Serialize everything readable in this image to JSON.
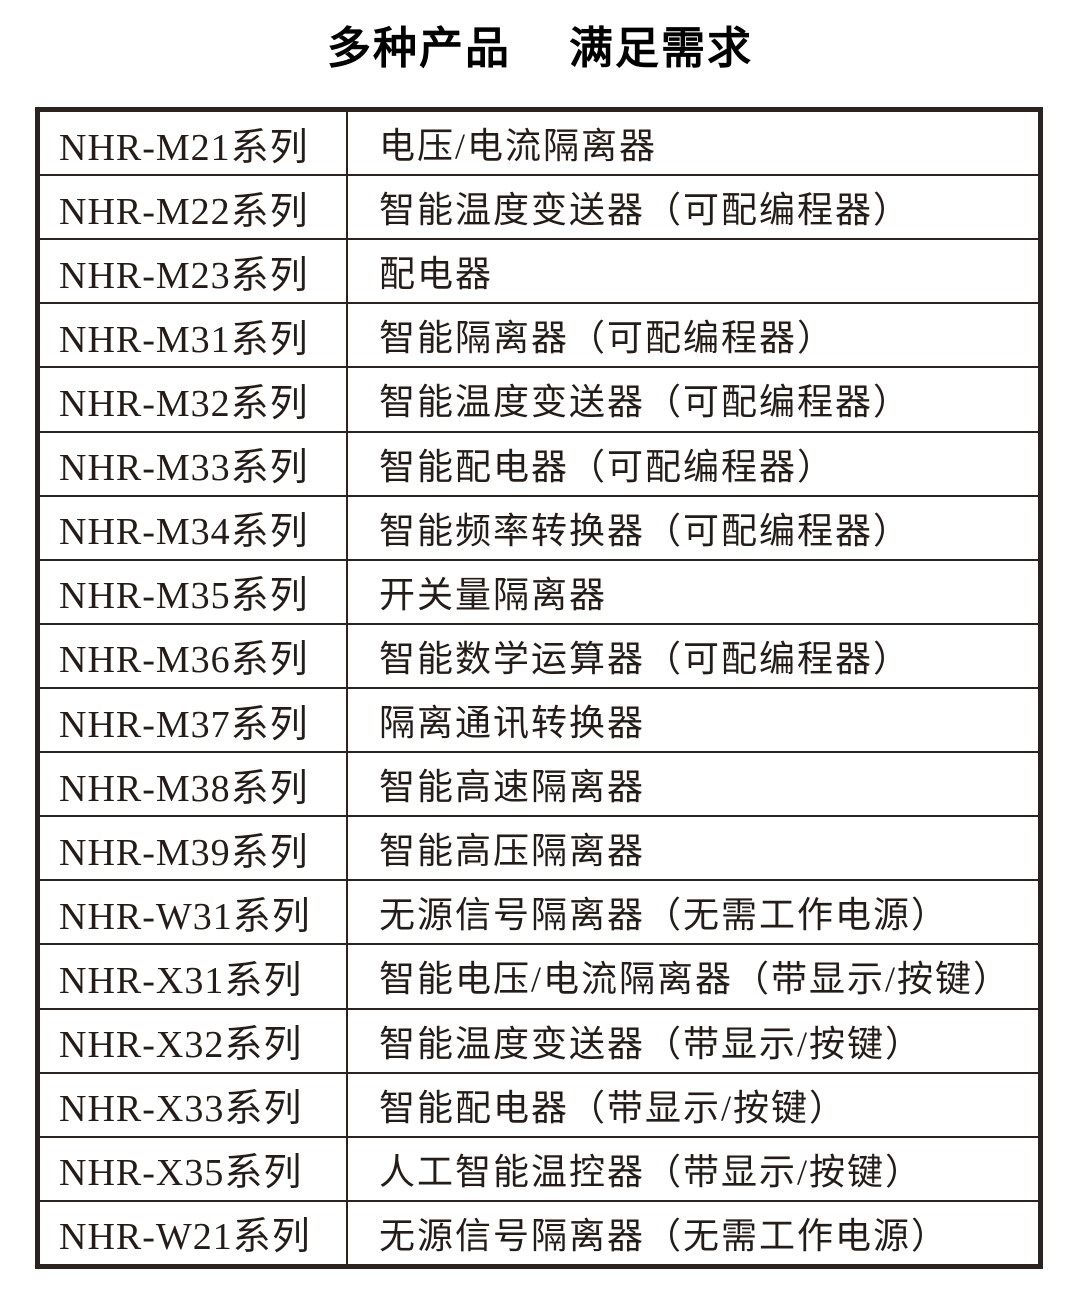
{
  "title": {
    "part1": "多种产品",
    "part2": "满足需求"
  },
  "colors": {
    "background": "#ffffff",
    "title_text": "#000000",
    "table_border": "#2b2320",
    "table_text": "#231c18"
  },
  "table": {
    "columns": [
      "series",
      "description"
    ],
    "rows": [
      {
        "series": "NHR-M21系列",
        "description": "电压/电流隔离器"
      },
      {
        "series": "NHR-M22系列",
        "description": "智能温度变送器（可配编程器）"
      },
      {
        "series": "NHR-M23系列",
        "description": "配电器"
      },
      {
        "series": "NHR-M31系列",
        "description": "智能隔离器（可配编程器）"
      },
      {
        "series": "NHR-M32系列",
        "description": "智能温度变送器（可配编程器）"
      },
      {
        "series": "NHR-M33系列",
        "description": "智能配电器（可配编程器）"
      },
      {
        "series": "NHR-M34系列",
        "description": "智能频率转换器（可配编程器）"
      },
      {
        "series": "NHR-M35系列",
        "description": "开关量隔离器"
      },
      {
        "series": "NHR-M36系列",
        "description": "智能数学运算器（可配编程器）"
      },
      {
        "series": "NHR-M37系列",
        "description": "隔离通讯转换器"
      },
      {
        "series": "NHR-M38系列",
        "description": "智能高速隔离器"
      },
      {
        "series": "NHR-M39系列",
        "description": "智能高压隔离器"
      },
      {
        "series": "NHR-W31系列",
        "description": "无源信号隔离器（无需工作电源）"
      },
      {
        "series": "NHR-X31系列",
        "description": "智能电压/电流隔离器（带显示/按键）"
      },
      {
        "series": "NHR-X32系列",
        "description": "智能温度变送器（带显示/按键）"
      },
      {
        "series": "NHR-X33系列",
        "description": "智能配电器（带显示/按键）"
      },
      {
        "series": "NHR-X35系列",
        "description": "人工智能温控器（带显示/按键）"
      },
      {
        "series": "NHR-W21系列",
        "description": "无源信号隔离器（无需工作电源）"
      }
    ]
  }
}
